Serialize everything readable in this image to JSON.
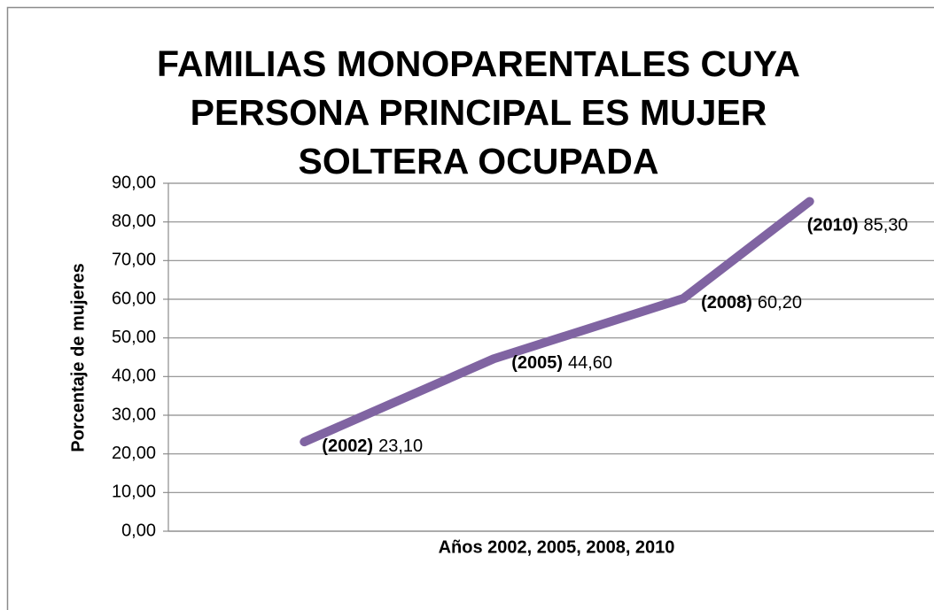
{
  "chart_data": {
    "type": "line",
    "title": [
      "FAMILIAS MONOPARENTALES CUYA",
      "PERSONA PRINCIPAL ES MUJER",
      "SOLTERA OCUPADA"
    ],
    "x_label": "Años 2002, 2005, 2008, 2010",
    "y_label": "Porcentaje de mujeres",
    "categories": [
      "(2002)",
      "(2005)",
      "(2008)",
      "(2010)"
    ],
    "x": [
      2002,
      2005,
      2008,
      2010
    ],
    "series": [
      {
        "name": "Porcentaje de mujeres",
        "color": "#8064a2",
        "values": [
          23.1,
          44.6,
          60.2,
          85.3
        ],
        "value_labels": [
          "23,10",
          "44,60",
          "60,20",
          "85,30"
        ]
      }
    ],
    "xlim": [
      1999.85,
      2012
    ],
    "ylim": [
      0,
      90
    ],
    "yticks": [
      {
        "value": 0,
        "label": "0,00"
      },
      {
        "value": 10,
        "label": "10,00"
      },
      {
        "value": 20,
        "label": "20,00"
      },
      {
        "value": 30,
        "label": "30,00"
      },
      {
        "value": 40,
        "label": "40,00"
      },
      {
        "value": 50,
        "label": "50,00"
      },
      {
        "value": 60,
        "label": "60,00"
      },
      {
        "value": 70,
        "label": "70,00"
      },
      {
        "value": 80,
        "label": "80,00"
      },
      {
        "value": 90,
        "label": "90,00"
      }
    ],
    "grid": true
  }
}
